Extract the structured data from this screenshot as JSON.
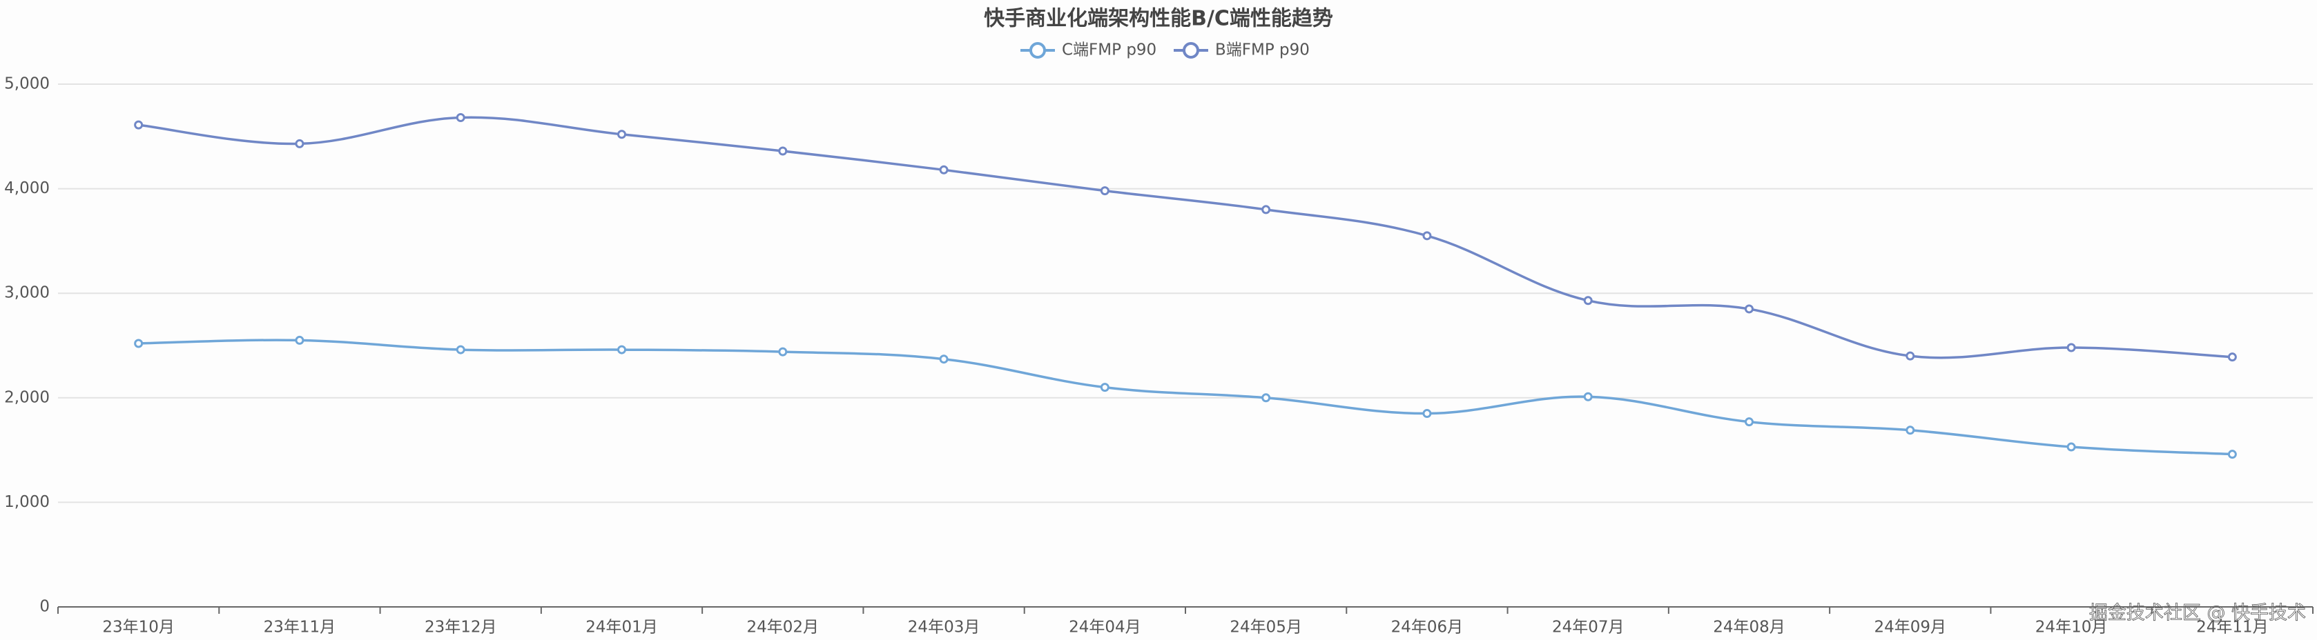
{
  "chart_data": {
    "type": "line",
    "title": "快手商业化端架构性能B/C端性能趋势",
    "categories": [
      "23年10月",
      "23年11月",
      "23年12月",
      "24年01月",
      "24年02月",
      "24年03月",
      "24年04月",
      "24年05月",
      "24年06月",
      "24年07月",
      "24年08月",
      "24年09月",
      "24年10月",
      "24年11月"
    ],
    "series": [
      {
        "name": "C端FMP p90",
        "color": "#6fa6d8",
        "values": [
          2520,
          2550,
          2460,
          2460,
          2440,
          2370,
          2100,
          2000,
          1850,
          2010,
          1770,
          1690,
          1530,
          1460
        ]
      },
      {
        "name": "B端FMP p90",
        "color": "#7087c6",
        "values": [
          4610,
          4430,
          4680,
          4520,
          4360,
          4180,
          3980,
          3800,
          3550,
          2930,
          2850,
          2400,
          2480,
          2390
        ]
      }
    ],
    "ylim": [
      0,
      5000
    ],
    "yticks": [
      0,
      {
        "value": 1000,
        "label": "1,000"
      },
      {
        "value": 2000,
        "label": "2,000"
      },
      {
        "value": 3000,
        "label": "3,000"
      },
      {
        "value": 4000,
        "label": "4,000"
      },
      {
        "value": 5000,
        "label": "5,000"
      }
    ],
    "grid": true,
    "watermark": "掘金技术社区 @ 快手技术"
  }
}
